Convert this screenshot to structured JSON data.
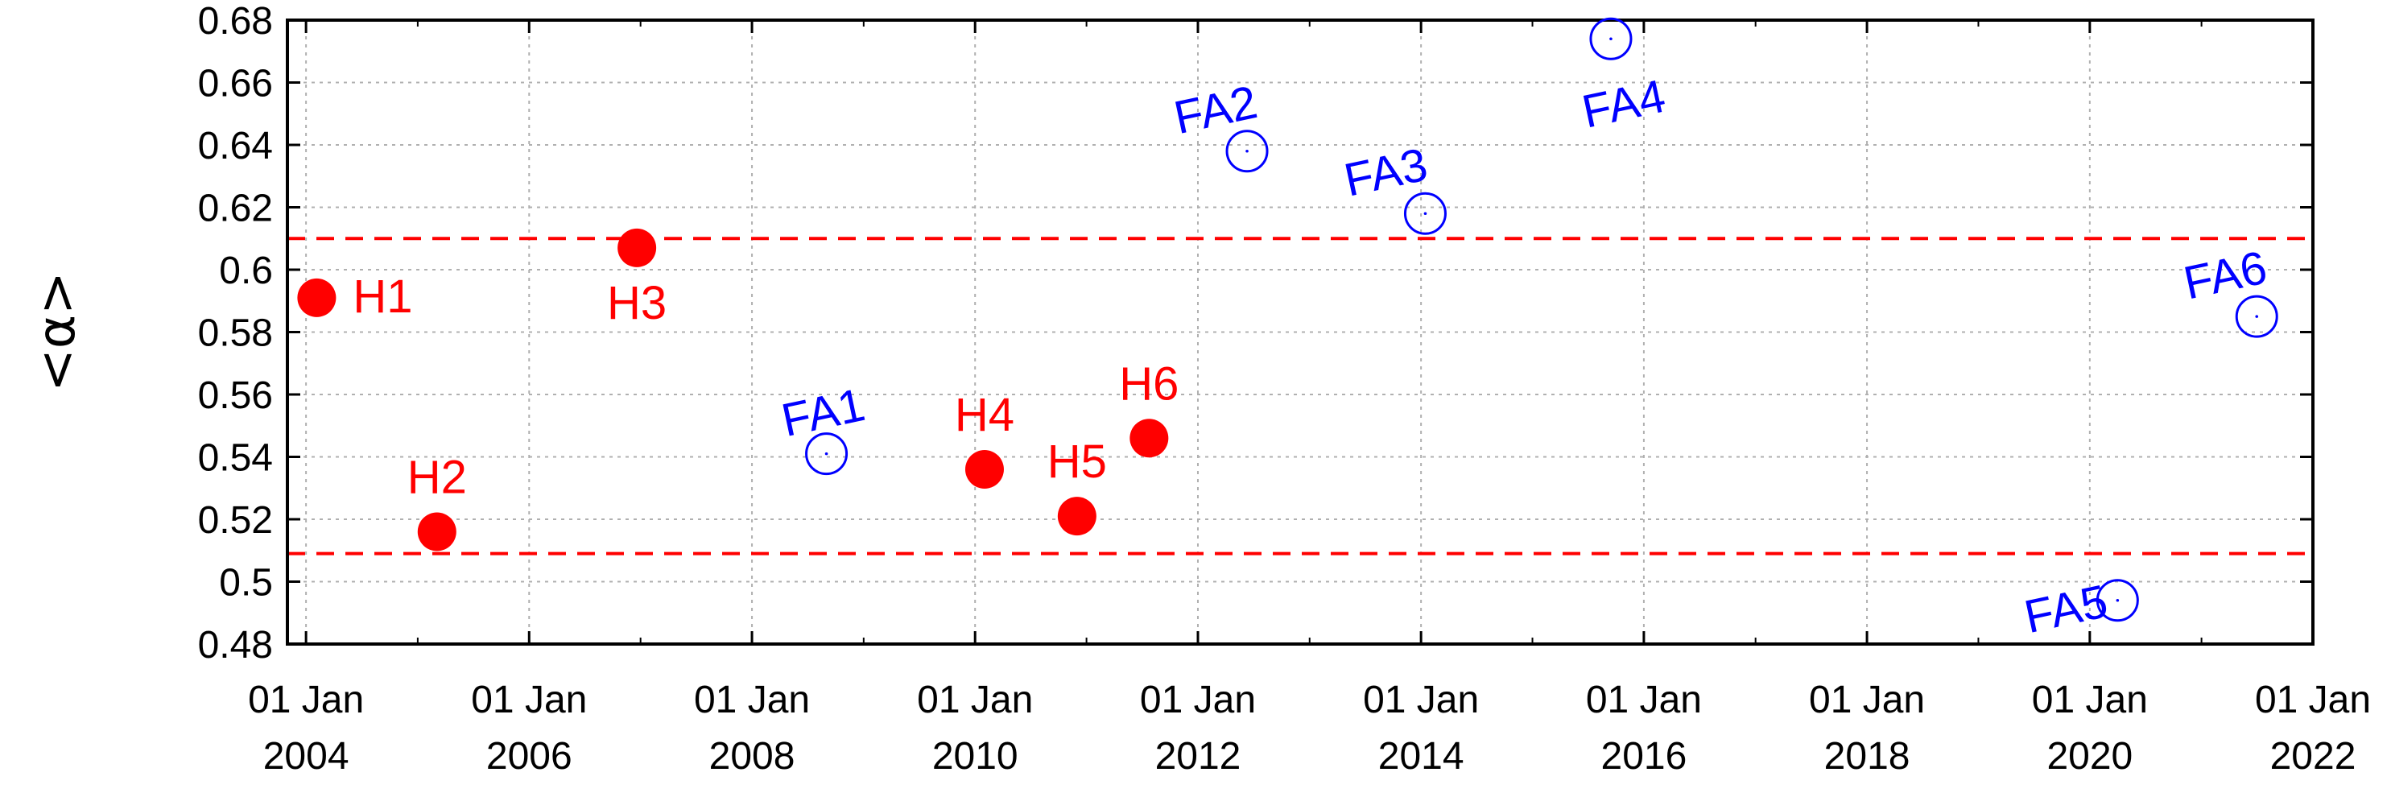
{
  "chart_data": {
    "type": "scatter",
    "title": "",
    "xlabel": "",
    "ylabel": "<α>",
    "ylim": [
      0.48,
      0.68
    ],
    "yticks": [
      "0.48",
      "0.5",
      "0.52",
      "0.54",
      "0.56",
      "0.58",
      "0.6",
      "0.62",
      "0.64",
      "0.66",
      "0.68"
    ],
    "xlim": [
      "2003-11-01",
      "2022-01-01"
    ],
    "xticks": [
      {
        "date": "2004-01-01",
        "line1": "01 Jan",
        "line2": "2004"
      },
      {
        "date": "2006-01-01",
        "line1": "01 Jan",
        "line2": "2006"
      },
      {
        "date": "2008-01-01",
        "line1": "01 Jan",
        "line2": "2008"
      },
      {
        "date": "2010-01-01",
        "line1": "01 Jan",
        "line2": "2010"
      },
      {
        "date": "2012-01-01",
        "line1": "01 Jan",
        "line2": "2012"
      },
      {
        "date": "2014-01-01",
        "line1": "01 Jan",
        "line2": "2014"
      },
      {
        "date": "2016-01-01",
        "line1": "01 Jan",
        "line2": "2016"
      },
      {
        "date": "2018-01-01",
        "line1": "01 Jan",
        "line2": "2018"
      },
      {
        "date": "2020-01-01",
        "line1": "01 Jan",
        "line2": "2020"
      },
      {
        "date": "2022-01-01",
        "line1": "01 Jan",
        "line2": "2022"
      }
    ],
    "grid": true,
    "reference_lines": [
      0.509,
      0.61
    ],
    "colors": {
      "h": "#ff0000",
      "fa": "#0000ff",
      "reference": "#ff0000",
      "grid": "#b0b0b0",
      "axis": "#000000"
    },
    "series": [
      {
        "marker": "filled-circle",
        "color": "#ff0000",
        "points": [
          {
            "label": "H1",
            "x": "2004-02-05",
            "y": 0.591
          },
          {
            "label": "H2",
            "x": "2005-03-05",
            "y": 0.516
          },
          {
            "label": "H3",
            "x": "2006-12-20",
            "y": 0.607
          },
          {
            "label": "H4",
            "x": "2010-02-01",
            "y": 0.536
          },
          {
            "label": "H5",
            "x": "2010-12-01",
            "y": 0.521
          },
          {
            "label": "H6",
            "x": "2011-07-25",
            "y": 0.546
          }
        ]
      },
      {
        "marker": "open-circle",
        "color": "#0000ff",
        "points": [
          {
            "label": "FA1",
            "x": "2008-09-01",
            "y": 0.541
          },
          {
            "label": "FA2",
            "x": "2012-06-10",
            "y": 0.638
          },
          {
            "label": "FA3",
            "x": "2014-01-15",
            "y": 0.618
          },
          {
            "label": "FA4",
            "x": "2015-09-15",
            "y": 0.674
          },
          {
            "label": "FA5",
            "x": "2020-04-01",
            "y": 0.494
          },
          {
            "label": "FA6",
            "x": "2021-07-01",
            "y": 0.585
          }
        ]
      }
    ]
  }
}
